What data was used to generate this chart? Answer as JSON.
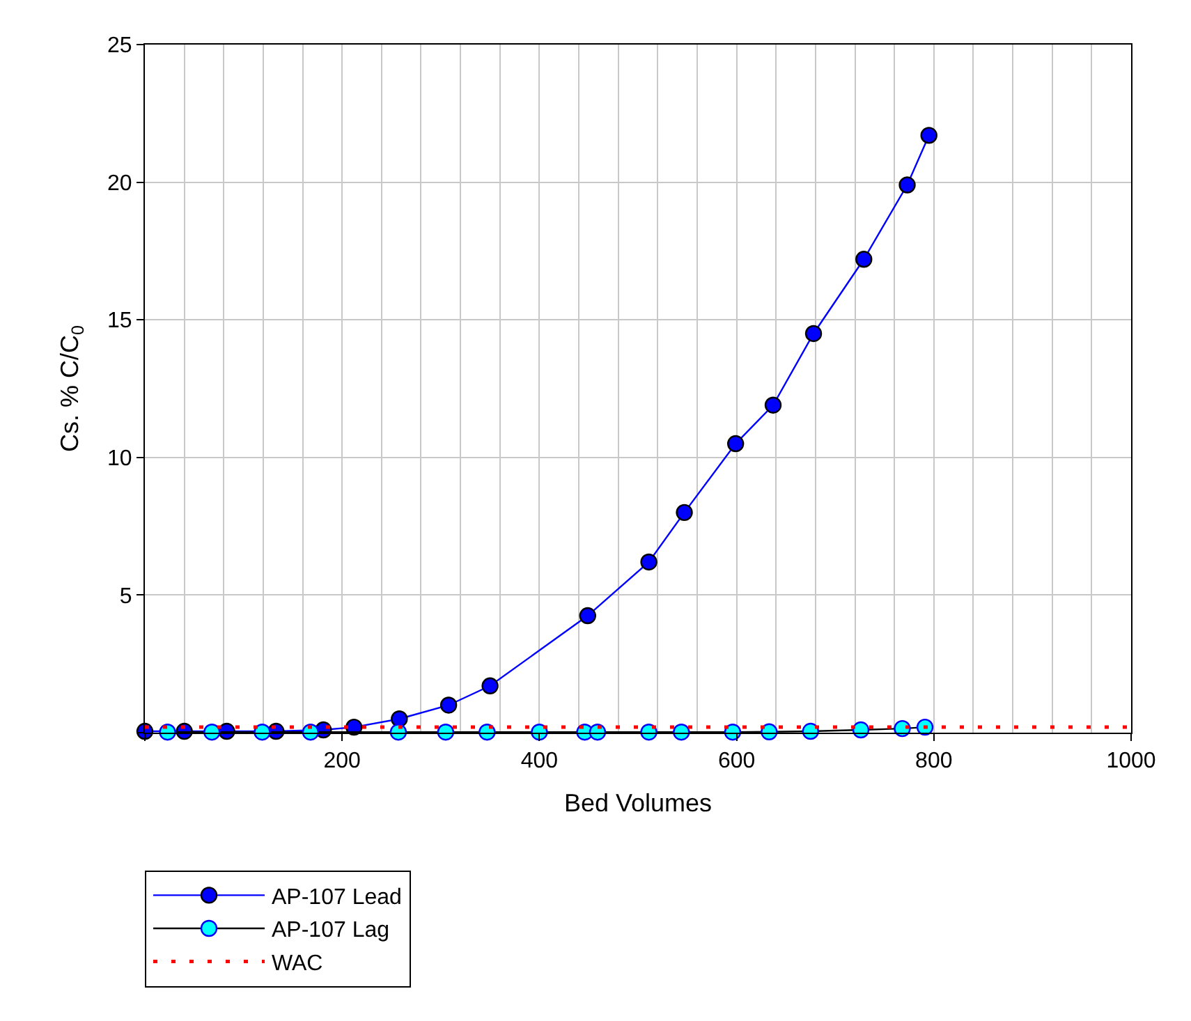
{
  "chart_data": {
    "type": "line",
    "xlabel": "Bed Volumes",
    "ylabel": "Cs. % C/C$_{0}$",
    "xlim": [
      0,
      1000
    ],
    "xticks": [
      {
        "value": 0,
        "label": null
      },
      200,
      400,
      600,
      800,
      1000
    ],
    "ylim": [
      0,
      25
    ],
    "yticks": [
      {
        "value": 0,
        "label": null
      },
      5,
      10,
      15,
      20,
      25
    ],
    "grid": true,
    "legend": "bottom left",
    "marker": "circle",
    "series": [
      {
        "name": "AP-107 Lead",
        "color": "#0000ff",
        "line_style": "solid",
        "x": [
          0,
          40,
          83,
          133,
          181,
          212,
          258,
          308,
          350,
          449,
          511,
          547,
          599,
          637,
          678,
          729,
          773,
          795
        ],
        "values": [
          0.05,
          0.05,
          0.05,
          0.05,
          0.1,
          0.2,
          0.5,
          1.0,
          1.7,
          4.25,
          6.2,
          8.0,
          10.5,
          11.9,
          14.5,
          17.2,
          19.9,
          21.7
        ]
      },
      {
        "name": "AP-107 Lag",
        "color": "#00ffff",
        "line_style": "solid",
        "x": [
          23,
          68,
          119,
          168,
          257,
          305,
          347,
          400,
          446,
          459,
          511,
          544,
          596,
          633,
          675,
          726,
          768,
          791
        ],
        "values": [
          0.02,
          0.02,
          0.02,
          0.02,
          0.02,
          0.02,
          0.02,
          0.02,
          0.02,
          0.02,
          0.02,
          0.02,
          0.02,
          0.03,
          0.05,
          0.1,
          0.15,
          0.2
        ]
      },
      {
        "name": "WAC",
        "color": "#ff0000",
        "marker": "none",
        "line_style": "dotted",
        "x": [
          0,
          1000
        ],
        "values": [
          0.2,
          0.2
        ]
      }
    ]
  }
}
